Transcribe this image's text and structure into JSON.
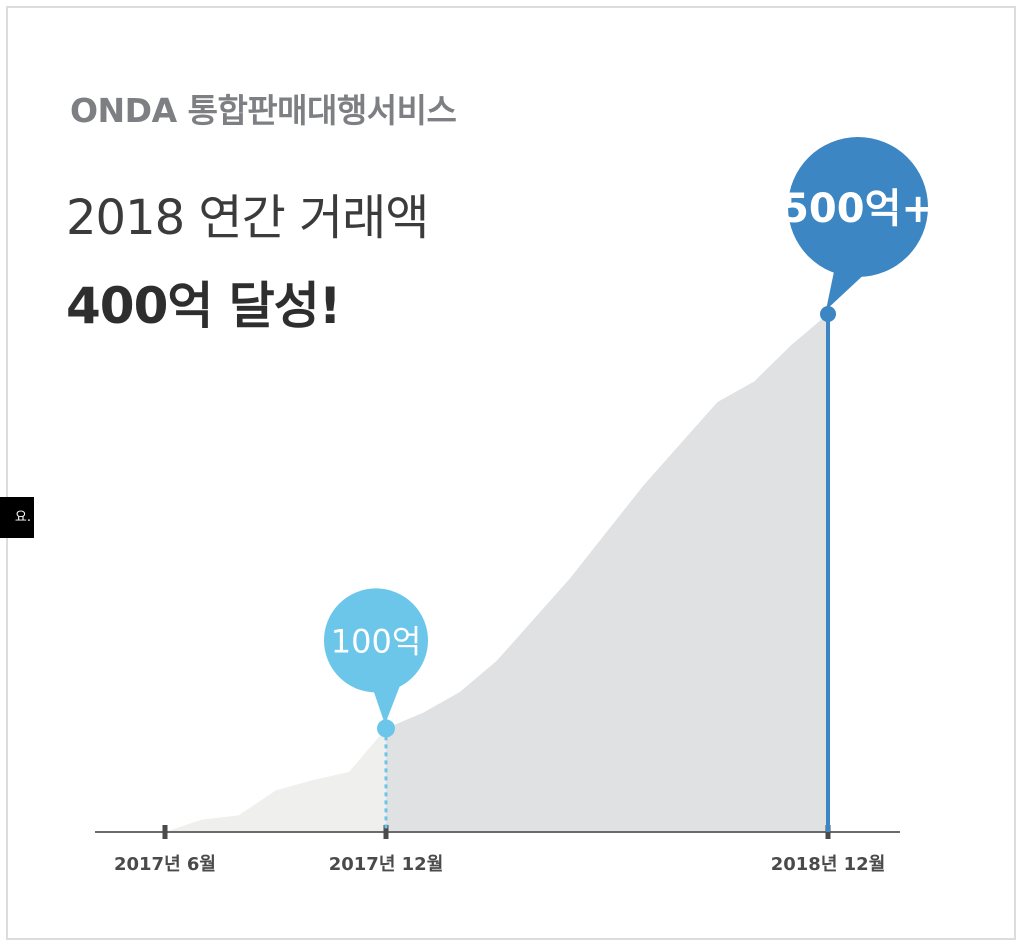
{
  "header": {
    "brand": "ONDA 통합판매대행서비스",
    "headline": "2018 연간 거래액",
    "headline_bold": "400억 달성!"
  },
  "side_tooltip": {
    "text": "요."
  },
  "colors": {
    "brand_text": "#7d7f82",
    "headline_text": "#3b3b3b",
    "area_early": "#efefed",
    "area_late": "#dfe1e2",
    "marker_light": "#6cc6ea",
    "marker_dark": "#3b86c3",
    "axis": "#6b6b6b"
  },
  "chart_data": {
    "type": "area",
    "title": "",
    "xlabel": "",
    "ylabel": "",
    "x": [
      "2017-06",
      "2017-07",
      "2017-08",
      "2017-09",
      "2017-10",
      "2017-11",
      "2017-12",
      "2018-01",
      "2018-02",
      "2018-03",
      "2018-04",
      "2018-05",
      "2018-06",
      "2018-07",
      "2018-08",
      "2018-09",
      "2018-10",
      "2018-11",
      "2018-12"
    ],
    "values": [
      0,
      12,
      16,
      40,
      50,
      58,
      100,
      115,
      135,
      165,
      205,
      245,
      290,
      335,
      375,
      415,
      435,
      470,
      500
    ],
    "ylim": [
      0,
      500
    ],
    "tick_labels": [
      "2017년 6월",
      "2017년 12월",
      "2018년 12월"
    ],
    "highlights": [
      {
        "x": "2017-12",
        "label": "100억",
        "color": "#6cc6ea",
        "line": "dotted"
      },
      {
        "x": "2018-12",
        "label": "500억+",
        "color": "#3b86c3",
        "line": "solid"
      }
    ],
    "grid": false,
    "legend": "none"
  }
}
